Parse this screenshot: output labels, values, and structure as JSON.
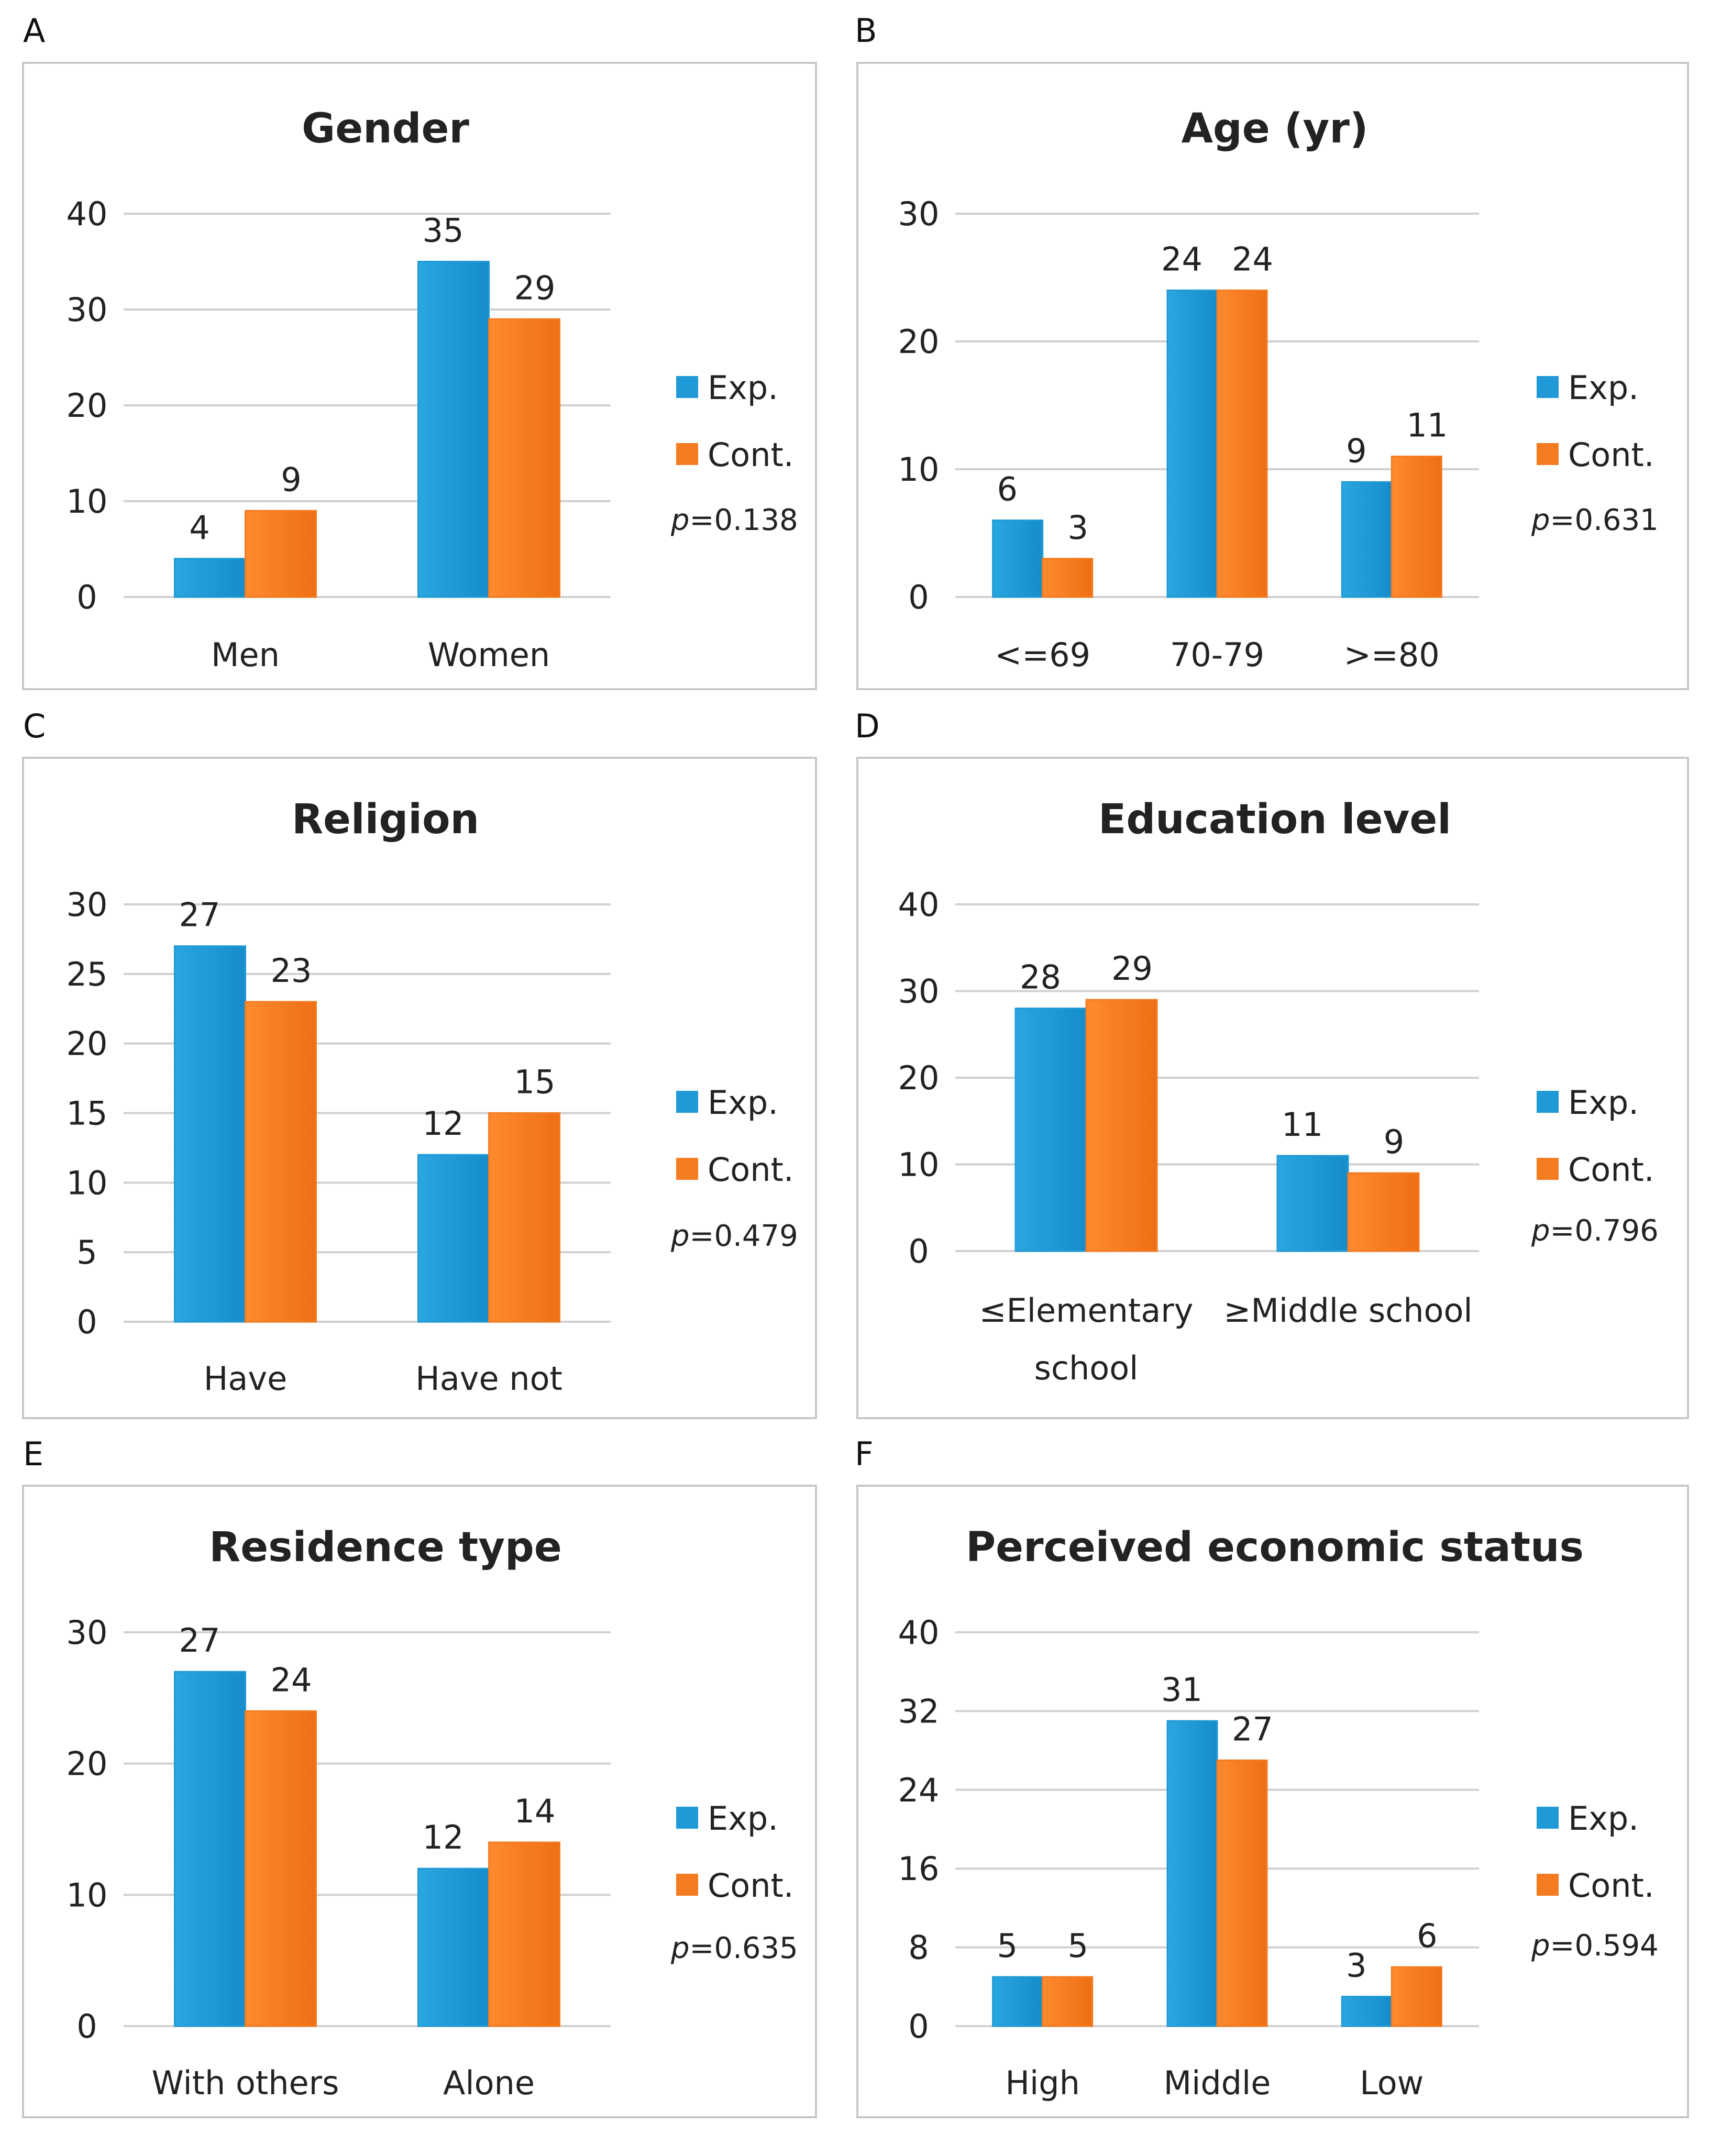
{
  "legend": {
    "exp": "Exp.",
    "cont": "Cont."
  },
  "colors": {
    "exp": "#1f9ad6",
    "cont": "#f57b20",
    "grid": "#d0d0d0",
    "border": "#c8c8c8"
  },
  "chart_data": [
    {
      "panel": "A",
      "type": "bar",
      "title": "Gender",
      "ylim": [
        0,
        40
      ],
      "ticks": [
        0,
        10,
        20,
        30,
        40
      ],
      "categories": [
        [
          "Men"
        ],
        [
          "Women"
        ]
      ],
      "series": [
        {
          "name": "Exp.",
          "values": [
            4,
            35
          ]
        },
        {
          "name": "Cont.",
          "values": [
            9,
            29
          ]
        }
      ],
      "p_value": "=0.138"
    },
    {
      "panel": "B",
      "type": "bar",
      "title": "Age (yr)",
      "ylim": [
        0,
        30
      ],
      "ticks": [
        0,
        10,
        20,
        30
      ],
      "categories": [
        [
          "<=69"
        ],
        [
          "70-79"
        ],
        [
          ">=80"
        ]
      ],
      "series": [
        {
          "name": "Exp.",
          "values": [
            6,
            24,
            9
          ]
        },
        {
          "name": "Cont.",
          "values": [
            3,
            24,
            11
          ]
        }
      ],
      "p_value": "=0.631"
    },
    {
      "panel": "C",
      "type": "bar",
      "title": "Religion",
      "ylim": [
        0,
        30
      ],
      "ticks": [
        0,
        5,
        10,
        15,
        20,
        25,
        30
      ],
      "categories": [
        [
          "Have"
        ],
        [
          "Have not"
        ]
      ],
      "series": [
        {
          "name": "Exp.",
          "values": [
            27,
            12
          ]
        },
        {
          "name": "Cont.",
          "values": [
            23,
            15
          ]
        }
      ],
      "p_value": "=0.479"
    },
    {
      "panel": "D",
      "type": "bar",
      "title": "Education level",
      "ylim": [
        0,
        40
      ],
      "ticks": [
        0,
        10,
        20,
        30,
        40
      ],
      "categories": [
        [
          "≤Elementary",
          "school"
        ],
        [
          "≥Middle school"
        ]
      ],
      "series": [
        {
          "name": "Exp.",
          "values": [
            28,
            11
          ]
        },
        {
          "name": "Cont.",
          "values": [
            29,
            9
          ]
        }
      ],
      "p_value": "=0.796"
    },
    {
      "panel": "E",
      "type": "bar",
      "title": "Residence type",
      "ylim": [
        0,
        30
      ],
      "ticks": [
        0,
        10,
        20,
        30
      ],
      "categories": [
        [
          "With others"
        ],
        [
          "Alone"
        ]
      ],
      "series": [
        {
          "name": "Exp.",
          "values": [
            27,
            12
          ]
        },
        {
          "name": "Cont.",
          "values": [
            24,
            14
          ]
        }
      ],
      "p_value": "=0.635"
    },
    {
      "panel": "F",
      "type": "bar",
      "title": "Perceived economic status",
      "ylim": [
        0,
        40
      ],
      "ticks": [
        0,
        8,
        16,
        24,
        32,
        40
      ],
      "categories": [
        [
          "High"
        ],
        [
          "Middle"
        ],
        [
          "Low"
        ]
      ],
      "series": [
        {
          "name": "Exp.",
          "values": [
            5,
            31,
            3
          ]
        },
        {
          "name": "Cont.",
          "values": [
            5,
            27,
            6
          ]
        }
      ],
      "p_value": "=0.594"
    }
  ]
}
